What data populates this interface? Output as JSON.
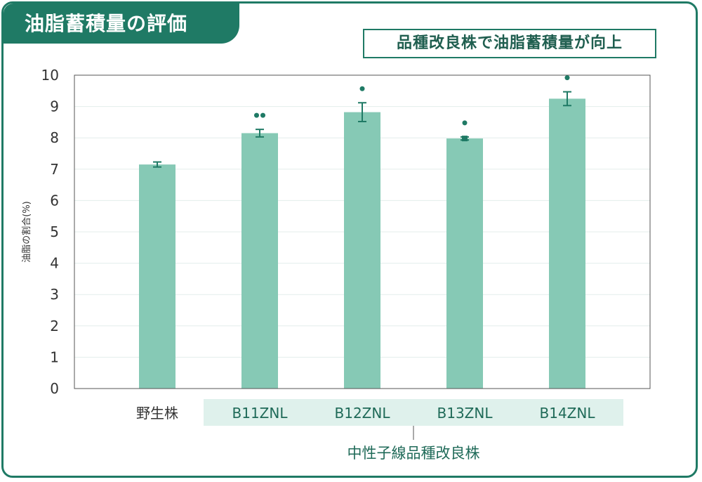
{
  "header": {
    "title": "油脂蓄積量の評価",
    "note": "品種改良株で油脂蓄積量が向上"
  },
  "colors": {
    "accent": "#1f7a65",
    "bar": "#86c9b5",
    "group_band": "#dff1ec",
    "grid": "#e3eeeb"
  },
  "chart_data": {
    "type": "bar",
    "title": "",
    "xlabel": "",
    "ylabel": "油脂の割合(%)",
    "ylim": [
      0,
      10
    ],
    "yticks": [
      0,
      1,
      2,
      3,
      4,
      5,
      6,
      7,
      8,
      9,
      10
    ],
    "grid": true,
    "categories": [
      "野生株",
      "B11ZNL",
      "B12ZNL",
      "B13ZNL",
      "B14ZNL"
    ],
    "values": [
      7.15,
      8.15,
      8.82,
      7.98,
      9.25
    ],
    "error": [
      0.08,
      0.12,
      0.3,
      0.05,
      0.22
    ],
    "markers": [
      "",
      "••",
      "•",
      "•",
      "•"
    ],
    "group": {
      "label": "中性子線品種改良株",
      "categories": [
        "B11ZNL",
        "B12ZNL",
        "B13ZNL",
        "B14ZNL"
      ]
    }
  }
}
